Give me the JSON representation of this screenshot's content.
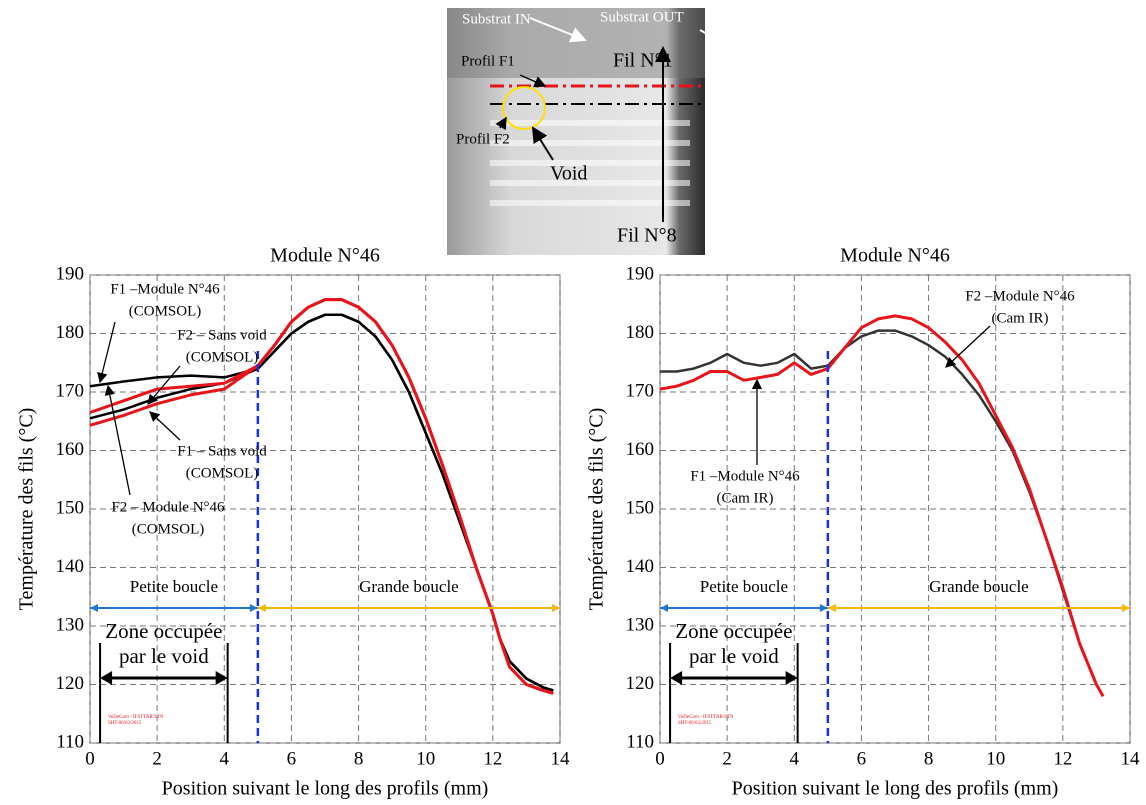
{
  "image": {
    "labels": [
      "Substrat IN",
      "Substrat OUT",
      "Profil F1",
      "Fil N°1",
      "Profil F2",
      "Void",
      "Fil N°8"
    ]
  },
  "chart_data": [
    {
      "type": "line",
      "title": "Module N°46",
      "xlabel": "Position suivant le long des profils (mm)",
      "ylabel": "Température des fils (°C)",
      "xlim": [
        0,
        14
      ],
      "ylim": [
        110,
        190
      ],
      "xticks": [
        0,
        2,
        4,
        6,
        8,
        10,
        12,
        14
      ],
      "yticks": [
        110,
        120,
        130,
        140,
        150,
        160,
        170,
        180,
        190
      ],
      "grid": true,
      "x": [
        0,
        1,
        2,
        3,
        4,
        5,
        5.5,
        6,
        6.5,
        7,
        7.5,
        8,
        8.5,
        9,
        9.5,
        10,
        10.5,
        11,
        11.5,
        12,
        12.2,
        12.5,
        13,
        13.5,
        13.8
      ],
      "series": [
        {
          "color": "#000000",
          "values": [
            171,
            171.8,
            172.5,
            172.8,
            172.5,
            174,
            177,
            180,
            182,
            183.2,
            183.2,
            182,
            179.5,
            175.5,
            170,
            163,
            156,
            148,
            140,
            132,
            128,
            124,
            121,
            119.5,
            119
          ]
        },
        {
          "color": "#000000",
          "values": [
            165.5,
            167,
            169,
            170.5,
            171.5,
            174,
            177,
            180,
            182,
            183.2,
            183.2,
            182,
            179.5,
            175.5,
            170,
            163,
            156,
            148,
            140,
            132,
            128,
            124,
            121,
            119.5,
            119
          ]
        },
        {
          "color": "#e8141b",
          "values": [
            166.5,
            168.5,
            170.5,
            171,
            171.5,
            174.5,
            178,
            182,
            184.5,
            185.8,
            185.8,
            184.5,
            182,
            178,
            172.5,
            165.5,
            157.5,
            149,
            140,
            132,
            128,
            123,
            120,
            119,
            118.5
          ]
        },
        {
          "color": "#e8141b",
          "values": [
            164.3,
            166,
            168,
            169.5,
            170.5,
            174.5,
            178,
            182,
            184.5,
            185.8,
            185.8,
            184.5,
            182,
            178,
            172.5,
            165.5,
            157.5,
            149,
            140,
            132,
            128,
            123,
            120,
            119,
            118.5
          ]
        }
      ],
      "annotations": [
        {
          "text": [
            "F1 –Module N°46",
            "(COMSOL)"
          ]
        },
        {
          "text": [
            "F2 – Sans void",
            "(COMSOL)"
          ]
        },
        {
          "text": [
            "F1 – Sans void",
            "(COMSOL)"
          ]
        },
        {
          "text": [
            "F2 – Module N°46",
            "(COMSOL)"
          ]
        }
      ],
      "vline": 5,
      "spans": [
        {
          "label": "Petite boucle",
          "from": 0,
          "to": 5,
          "color": "#1f77d0"
        },
        {
          "label": "Grande boucle",
          "from": 5,
          "to": 14,
          "color": "#f5b800"
        }
      ],
      "zone": {
        "label": [
          "Zone occupée",
          "par le void"
        ],
        "from": 0.3,
        "to": 4.1
      },
      "watermark": [
        "VeDeCom - IFSTTAR/LTN",
        "SHT-06/03/2015"
      ]
    },
    {
      "type": "line",
      "title": "Module N°46",
      "xlabel": "Position suivant le long des profils (mm)",
      "ylabel": "Température des fils (°C)",
      "xlim": [
        0,
        14
      ],
      "ylim": [
        110,
        190
      ],
      "xticks": [
        0,
        2,
        4,
        6,
        8,
        10,
        12,
        14
      ],
      "yticks": [
        110,
        120,
        130,
        140,
        150,
        160,
        170,
        180,
        190
      ],
      "grid": true,
      "x": [
        0,
        0.5,
        1,
        1.5,
        2,
        2.5,
        3,
        3.5,
        4,
        4.5,
        5,
        5.5,
        6,
        6.5,
        7,
        7.5,
        8,
        8.5,
        9,
        9.5,
        10,
        10.5,
        11,
        11.5,
        12,
        12.5,
        13,
        13.2
      ],
      "series": [
        {
          "color": "#333333",
          "values": [
            173.5,
            173.5,
            174,
            175,
            176.5,
            175,
            174.5,
            175,
            176.5,
            174,
            174.5,
            177.5,
            179.5,
            180.5,
            180.5,
            179.5,
            178,
            176,
            173,
            169.5,
            165,
            160,
            153,
            145,
            136,
            127,
            120,
            118
          ]
        },
        {
          "color": "#e8141b",
          "values": [
            170.5,
            171,
            172,
            173.5,
            173.5,
            172,
            172.5,
            173,
            175,
            173,
            174,
            177.5,
            181,
            182.5,
            183,
            182.5,
            181,
            178.5,
            175.5,
            171.5,
            166,
            160.5,
            153.5,
            145,
            136.5,
            127,
            120,
            118
          ]
        }
      ],
      "annotations": [
        {
          "text": [
            "F1 –Module N°46",
            "(Cam IR)"
          ]
        },
        {
          "text": [
            "F2 –Module N°46",
            "(Cam IR)"
          ]
        }
      ],
      "vline": 5,
      "spans": [
        {
          "label": "Petite boucle",
          "from": 0,
          "to": 5,
          "color": "#1f77d0"
        },
        {
          "label": "Grande boucle",
          "from": 5,
          "to": 14,
          "color": "#f5b800"
        }
      ],
      "zone": {
        "label": [
          "Zone occupée",
          "par le void"
        ],
        "from": 0.3,
        "to": 4.1
      },
      "watermark": [
        "VeDeCom - IFSTTAR/LTN",
        "SHT-06/03/2015"
      ]
    }
  ]
}
